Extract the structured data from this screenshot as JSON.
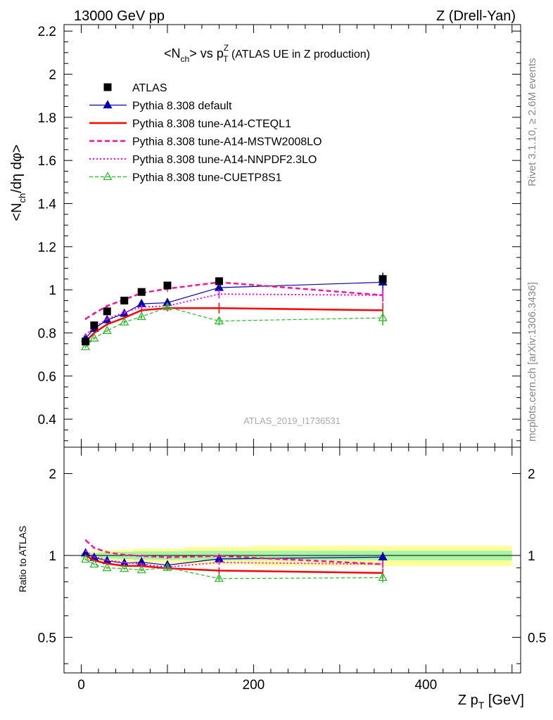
{
  "header": {
    "left": "13000 GeV pp",
    "right": "Z (Drell-Yan)"
  },
  "title": {
    "prefix": "<N",
    "prefix_sub": "ch",
    "mid": "> vs p",
    "mid_sup": "Z",
    "mid_sub": "T",
    "suffix": " (ATLAS UE in Z production)"
  },
  "ylabel_main": {
    "a": "<N",
    "a_sub": "ch",
    "b": "/dη dφ>"
  },
  "ylabel_ratio": "Ratio to ATLAS",
  "xlabel": {
    "a": "Z p",
    "a_sub": "T",
    "b": " [GeV]"
  },
  "side_text": {
    "rivet": "Rivet 3.1.10, ≥ 2.6M events",
    "mcplots": "mcplots.cern.ch [arXiv:1306.3436]"
  },
  "watermark": "ATLAS_2019_I1736531",
  "colors": {
    "data": "#000000",
    "default": "#0000b0",
    "a14cteql1": "#ff0000",
    "a14mstw": "#ff1493",
    "a14nnpdf": "#ff00ff",
    "cuetp8s1": "#22bb22",
    "band_inner": "#a6f5a6",
    "band_outer": "#ffff99"
  },
  "chart_data": {
    "type": "scatter",
    "x_bins": [
      [
        0,
        10
      ],
      [
        10,
        20
      ],
      [
        20,
        40
      ],
      [
        40,
        60
      ],
      [
        60,
        80
      ],
      [
        80,
        120
      ],
      [
        120,
        200
      ],
      [
        200,
        500
      ]
    ],
    "x_centers": [
      5,
      15,
      30,
      50,
      70,
      100,
      160,
      350
    ],
    "xlim": [
      -20,
      510
    ],
    "x_ticks": [
      0,
      200,
      400
    ],
    "main": {
      "ylim": [
        0.27,
        2.23
      ],
      "y_ticks": [
        0.4,
        0.6,
        0.8,
        1,
        1.2,
        1.4,
        1.6,
        1.8,
        2,
        2.2
      ],
      "y_tick_labels": [
        "0.4",
        "0.6",
        "0.8",
        "1",
        "1.2",
        "1.4",
        "1.6",
        "1.8",
        "2",
        "2.2"
      ]
    },
    "ratio": {
      "ylim": [
        0.37,
        2.5
      ],
      "log": true,
      "y_ticks": [
        0.5,
        1,
        2
      ],
      "y_tick_labels": [
        "0.5",
        "1",
        "2"
      ],
      "band_inner_halfwidth": [
        0.02,
        0.02,
        0.025,
        0.03,
        0.035,
        0.035,
        0.04,
        0.04
      ],
      "band_outer_halfwidth": [
        0.03,
        0.035,
        0.045,
        0.05,
        0.06,
        0.06,
        0.075,
        0.085
      ]
    },
    "series": [
      {
        "key": "data",
        "name": "ATLAS",
        "style": "data",
        "values": [
          0.76,
          0.835,
          0.9,
          0.95,
          0.99,
          1.02,
          1.04,
          1.05
        ],
        "errors": [
          0.01,
          0.01,
          0.012,
          0.012,
          0.012,
          0.015,
          0.015,
          0.02
        ]
      },
      {
        "key": "default",
        "name": "Pythia 8.308 default",
        "style": "solid-thin-triangle",
        "values": [
          0.775,
          0.82,
          0.86,
          0.89,
          0.935,
          0.94,
          1.01,
          1.035
        ],
        "errors": [
          0.005,
          0.006,
          0.006,
          0.008,
          0.01,
          0.015,
          0.02,
          0.045
        ]
      },
      {
        "key": "a14cteql1",
        "name": "Pythia 8.308 tune-A14-CTEQL1",
        "style": "solid-thick",
        "values": [
          0.76,
          0.8,
          0.84,
          0.87,
          0.905,
          0.915,
          0.915,
          0.905
        ],
        "errors": [
          0.005,
          0.006,
          0.006,
          0.008,
          0.01,
          0.015,
          0.025,
          0.035
        ]
      },
      {
        "key": "a14mstw",
        "name": "Pythia 8.308 tune-A14-MSTW2008LO",
        "style": "dashed-thick",
        "values": [
          0.865,
          0.89,
          0.925,
          0.955,
          0.985,
          1.005,
          1.035,
          0.975
        ],
        "errors": [
          0.005,
          0.006,
          0.006,
          0.008,
          0.01,
          0.015,
          0.02,
          0.03
        ]
      },
      {
        "key": "a14nnpdf",
        "name": "Pythia 8.308 tune-A14-NNPDF2.3LO",
        "style": "dotted",
        "values": [
          0.79,
          0.825,
          0.865,
          0.895,
          0.92,
          0.925,
          0.98,
          0.975
        ],
        "errors": [
          0.005,
          0.006,
          0.006,
          0.008,
          0.01,
          0.015,
          0.02,
          0.03
        ]
      },
      {
        "key": "cuetp8s1",
        "name": "Pythia 8.308 tune-CUETP8S1",
        "style": "dashed-thin-open-triangle",
        "values": [
          0.735,
          0.775,
          0.81,
          0.85,
          0.875,
          0.92,
          0.855,
          0.87
        ],
        "errors": [
          0.005,
          0.006,
          0.006,
          0.008,
          0.01,
          0.015,
          0.02,
          0.035
        ]
      }
    ]
  }
}
